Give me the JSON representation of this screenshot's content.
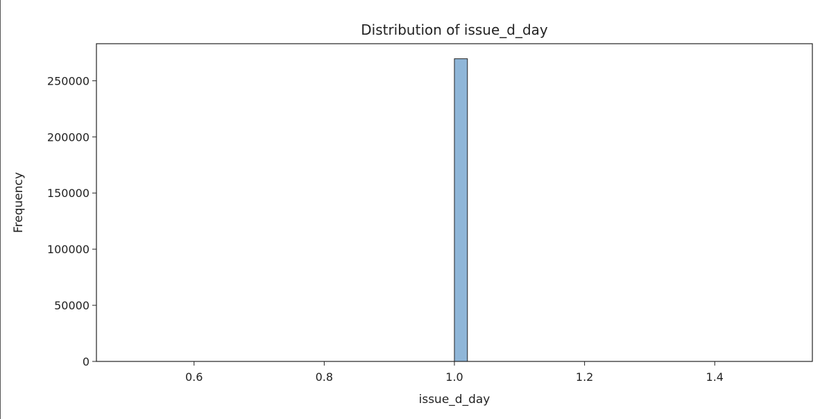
{
  "chart_data": {
    "type": "bar",
    "title": "Distribution of issue_d_day",
    "xlabel": "issue_d_day",
    "ylabel": "Frequency",
    "xlim": [
      0.45,
      1.55
    ],
    "ylim": [
      0,
      283000
    ],
    "xticks": [
      "0.6",
      "0.8",
      "1.0",
      "1.2",
      "1.4"
    ],
    "yticks": [
      "0",
      "50000",
      "100000",
      "150000",
      "200000",
      "250000"
    ],
    "bins": [
      {
        "x0": 1.0,
        "x1": 1.02,
        "count": 269600
      }
    ],
    "grid": false,
    "legend": null,
    "bar_color": "#8fb6d8",
    "edge_color": "#222222"
  }
}
